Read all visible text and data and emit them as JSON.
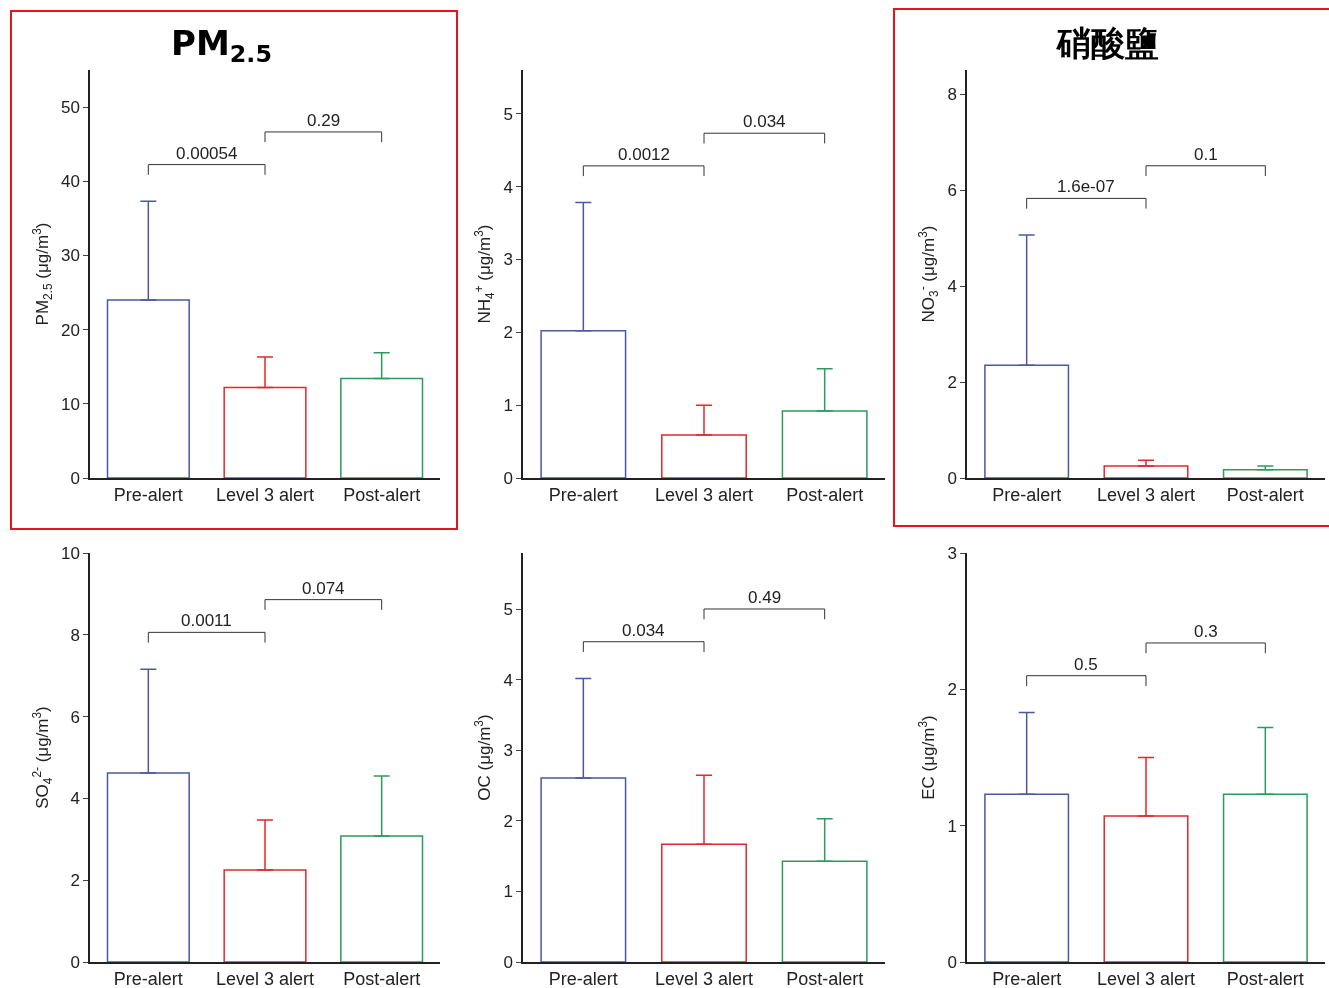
{
  "chart_data": [
    {
      "type": "bar",
      "title": "PM$_{2.5}$",
      "ylabel": "PM$_{2.5}$ (μg/m$^{3}$)",
      "categories": [
        "Pre-alert",
        "Level 3 alert",
        "Post-alert"
      ],
      "values": [
        24,
        12.2,
        13.4
      ],
      "errors": [
        [
          24,
          37.3
        ],
        [
          12.2,
          16.3
        ],
        [
          13.4,
          16.9
        ]
      ],
      "colors": [
        "#4b5a9e",
        "#e0282e",
        "#2e9a5e"
      ],
      "ylim": [
        0,
        55
      ],
      "yticks": [
        0,
        10,
        20,
        30,
        40,
        50
      ],
      "grid": false,
      "annotations": [
        "0.00054",
        "0.29"
      ]
    },
    {
      "type": "bar",
      "ylabel": "NH$_{4}$$^{+}$ (μg/m$^{3}$)",
      "categories": [
        "Pre-alert",
        "Level 3 alert",
        "Post-alert"
      ],
      "values": [
        2.02,
        0.59,
        0.92
      ],
      "errors": [
        [
          2.02,
          3.78
        ],
        [
          0.59,
          1.0
        ],
        [
          0.92,
          1.5
        ]
      ],
      "colors": [
        "#4b5a9e",
        "#e0282e",
        "#2e9a5e"
      ],
      "ylim": [
        0,
        5.6
      ],
      "yticks": [
        0,
        1,
        2,
        3,
        4,
        5
      ],
      "grid": false,
      "annotations": [
        "0.0012",
        "0.034"
      ]
    },
    {
      "type": "bar",
      "title": "硝酸鹽",
      "ylabel": "NO$_{3}$$^{-}$ (μg/m$^{3}$)",
      "categories": [
        "Pre-alert",
        "Level 3 alert",
        "Post-alert"
      ],
      "values": [
        2.35,
        0.25,
        0.17
      ],
      "errors": [
        [
          2.35,
          5.06
        ],
        [
          0.25,
          0.37
        ],
        [
          0.17,
          0.25
        ]
      ],
      "colors": [
        "#4b5a9e",
        "#e0282e",
        "#2e9a5e"
      ],
      "ylim": [
        0,
        8.5
      ],
      "yticks": [
        0,
        2,
        4,
        6,
        8
      ],
      "grid": false,
      "annotations": [
        "1.6e-07",
        "0.1"
      ]
    },
    {
      "type": "bar",
      "ylabel": "SO$_{4}$$^{2-}$ (μg/m$^{3}$)",
      "categories": [
        "Pre-alert",
        "Level 3 alert",
        "Post-alert"
      ],
      "values": [
        4.62,
        2.25,
        3.08
      ],
      "errors": [
        [
          4.62,
          7.16
        ],
        [
          2.25,
          3.47
        ],
        [
          3.08,
          4.55
        ]
      ],
      "colors": [
        "#4b5a9e",
        "#e0282e",
        "#2e9a5e"
      ],
      "ylim": [
        0,
        10
      ],
      "yticks": [
        0,
        2,
        4,
        6,
        8,
        10
      ],
      "grid": false,
      "annotations": [
        "0.0011",
        "0.074"
      ]
    },
    {
      "type": "bar",
      "ylabel": "OC (μg/m$^{3}$)",
      "categories": [
        "Pre-alert",
        "Level 3 alert",
        "Post-alert"
      ],
      "values": [
        2.61,
        1.67,
        1.43
      ],
      "errors": [
        [
          2.61,
          4.02
        ],
        [
          1.67,
          2.65
        ],
        [
          1.43,
          2.03
        ]
      ],
      "colors": [
        "#4b5a9e",
        "#e0282e",
        "#2e9a5e"
      ],
      "ylim": [
        0,
        5.8
      ],
      "yticks": [
        0,
        1,
        2,
        3,
        4,
        5
      ],
      "grid": false,
      "annotations": [
        "0.034",
        "0.49"
      ]
    },
    {
      "type": "bar",
      "ylabel": "EC (μg/m$^{3}$)",
      "categories": [
        "Pre-alert",
        "Level 3 alert",
        "Post-alert"
      ],
      "values": [
        1.23,
        1.07,
        1.23
      ],
      "errors": [
        [
          1.23,
          1.83
        ],
        [
          1.07,
          1.5
        ],
        [
          1.23,
          1.72
        ]
      ],
      "colors": [
        "#4b5a9e",
        "#e0282e",
        "#2e9a5e"
      ],
      "ylim": [
        0,
        3
      ],
      "yticks": [
        0,
        1,
        2,
        3
      ],
      "grid": false,
      "annotations": [
        "0.5",
        "0.3"
      ]
    }
  ]
}
